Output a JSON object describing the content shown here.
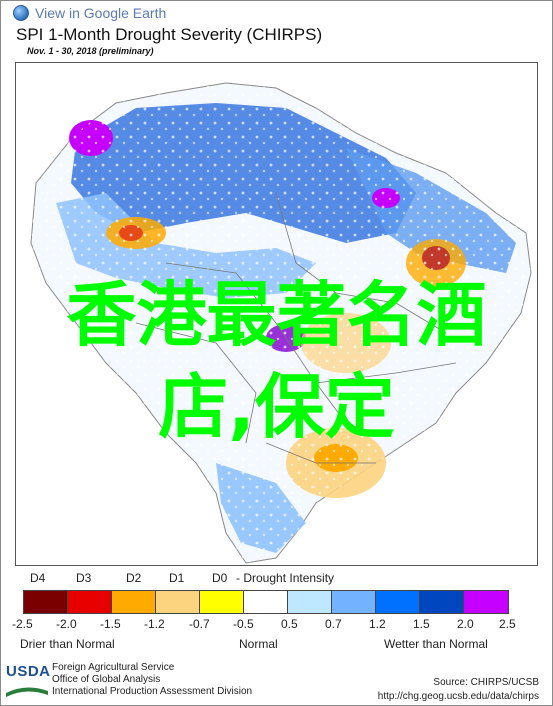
{
  "header": {
    "earth_link": "View in Google Earth",
    "title": "SPI 1-Month Drought Severity (CHIRPS)",
    "subtitle": "Nov. 1 - 30, 2018 (preliminary)"
  },
  "overlay": {
    "line1": "香港最著名酒",
    "line2": "店,保定"
  },
  "legend": {
    "categories": [
      "D4",
      "D3",
      "D2",
      "D1",
      "D0",
      "- Drought Intensity"
    ],
    "colors": [
      "#7a0000",
      "#e60000",
      "#ffaa00",
      "#fcd37f",
      "#ffff00",
      "#ffffff",
      "#bee8ff",
      "#73b2ff",
      "#0070ff",
      "#0046be",
      "#c500ff"
    ],
    "ticks": [
      "-2.5",
      "-2.0",
      "-1.5",
      "-1.2",
      "-0.7",
      "-0.5",
      "0.5",
      "0.7",
      "1.2",
      "1.5",
      "2.0",
      "2.5"
    ],
    "left_label": "Drier than Normal",
    "center_label": "Normal",
    "right_label": "Wetter than Normal"
  },
  "footer": {
    "logo_text": "USDA",
    "agency_line1": "Foreign Agricultural Service",
    "agency_line2": "Office of Global Analysis",
    "agency_line3": "International Production Assessment Division",
    "source": "Source: CHIRPS/UCSB",
    "url": "http://chg.geog.ucsb.edu/data/chirps"
  }
}
